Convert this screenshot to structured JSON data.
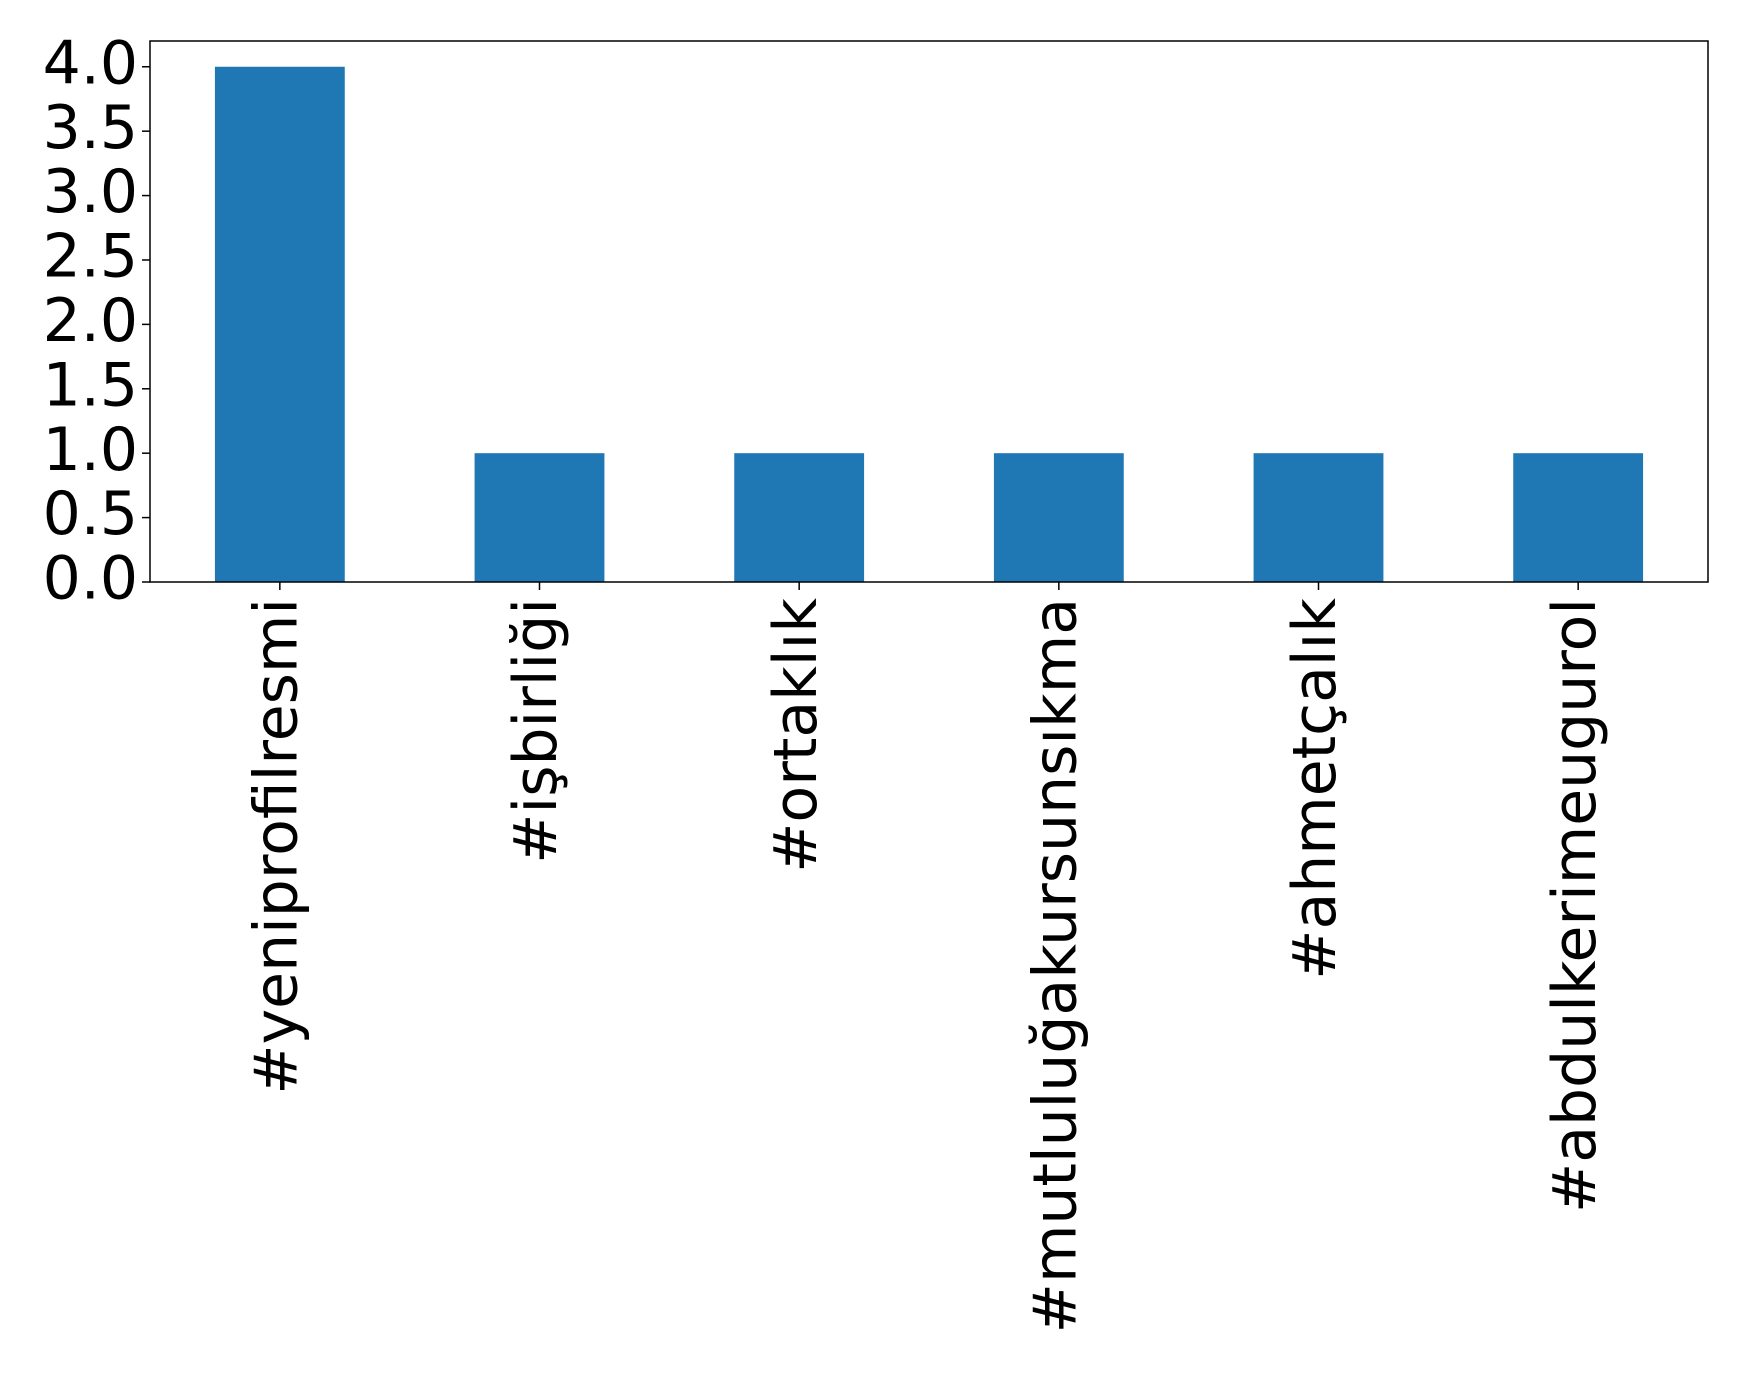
{
  "chart_data": {
    "type": "bar",
    "categories": [
      "#yeniprofilresmi",
      "#işbirliği",
      "#ortaklık",
      "#mutluluğakursunsıkma",
      "#ahmetçalık",
      "#abdulkerimeugurol"
    ],
    "values": [
      4,
      1,
      1,
      1,
      1,
      1
    ],
    "color": "#1f77b4",
    "ylim": [
      0,
      4.2
    ],
    "yticks": [
      {
        "value": 0,
        "label": "0.0"
      },
      {
        "value": 0.5,
        "label": "0.5"
      },
      {
        "value": 1,
        "label": "1.0"
      },
      {
        "value": 1.5,
        "label": "1.5"
      },
      {
        "value": 2,
        "label": "2.0"
      },
      {
        "value": 2.5,
        "label": "2.5"
      },
      {
        "value": 3,
        "label": "3.0"
      },
      {
        "value": 3.5,
        "label": "3.5"
      },
      {
        "value": 4,
        "label": "4.0"
      }
    ],
    "grid": false
  }
}
